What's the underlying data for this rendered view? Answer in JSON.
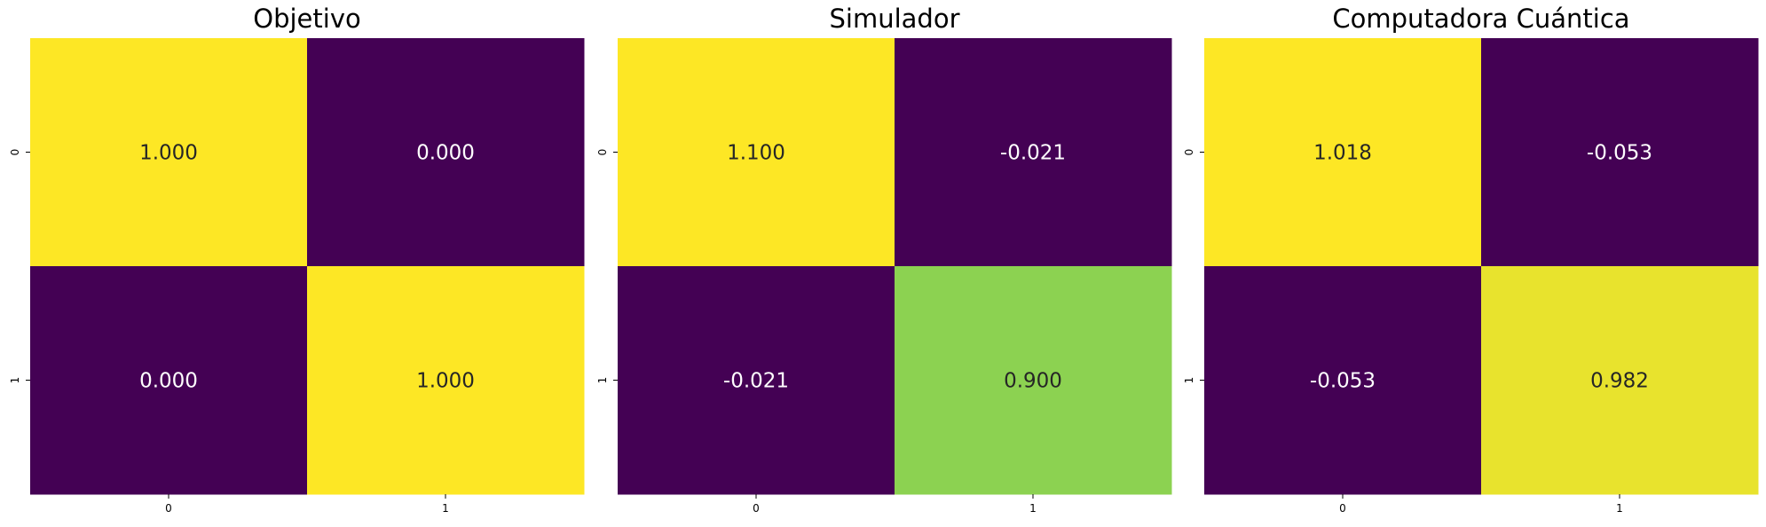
{
  "colors": {
    "low": "#440154",
    "high": "#fde725",
    "text_on_dark": "#ffffff",
    "text_on_light": "#262626"
  },
  "chart_data": [
    {
      "type": "heatmap",
      "title": "Objetivo",
      "x_ticks": [
        "0",
        "1"
      ],
      "y_ticks": [
        "0",
        "1"
      ],
      "values": [
        [
          1.0,
          0.0
        ],
        [
          0.0,
          1.0
        ]
      ],
      "labels": [
        [
          "1.000",
          "0.000"
        ],
        [
          "0.000",
          "1.000"
        ]
      ],
      "colormap": "viridis",
      "colorbar": false
    },
    {
      "type": "heatmap",
      "title": "Simulador",
      "x_ticks": [
        "0",
        "1"
      ],
      "y_ticks": [
        "0",
        "1"
      ],
      "values": [
        [
          1.1,
          -0.021
        ],
        [
          -0.021,
          0.9
        ]
      ],
      "labels": [
        [
          "1.100",
          "-0.021"
        ],
        [
          "-0.021",
          "0.900"
        ]
      ],
      "colormap": "viridis",
      "colorbar": false
    },
    {
      "type": "heatmap",
      "title": "Computadora Cuántica",
      "x_ticks": [
        "0",
        "1"
      ],
      "y_ticks": [
        "0",
        "1"
      ],
      "values": [
        [
          1.018,
          -0.053
        ],
        [
          -0.053,
          0.982
        ]
      ],
      "labels": [
        [
          "1.018",
          "-0.053"
        ],
        [
          "-0.053",
          "0.982"
        ]
      ],
      "colormap": "viridis",
      "colorbar": false
    }
  ]
}
